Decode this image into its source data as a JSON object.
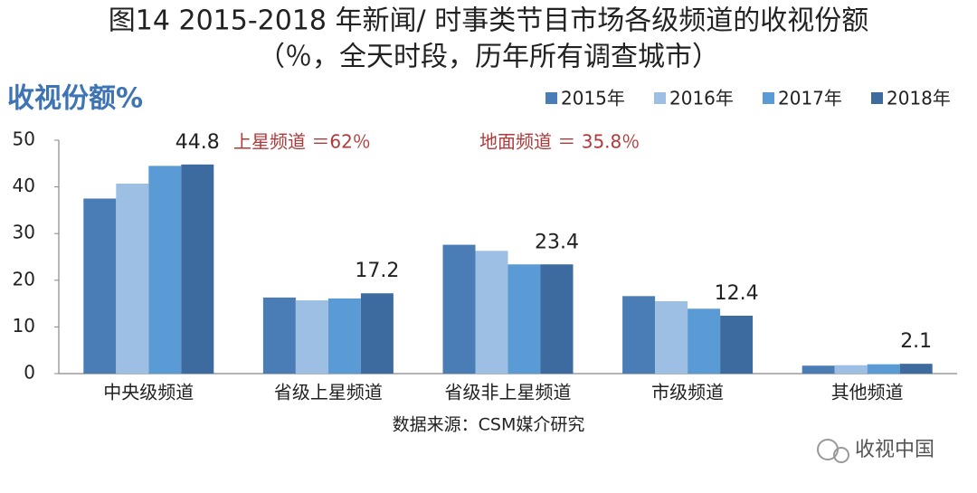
{
  "chart_data": {
    "type": "bar",
    "title": "图14 2015-2018 年新闻/ 时事类节目市场各级频道的收视份额",
    "subtitle": "（％，全天时段，历年所有调查城市）",
    "ylabel": "收视份额%",
    "annotations": [
      "上星频道 ＝62％",
      "地面频道 ＝ 35.8％"
    ],
    "source": "数据来源：CSM媒介研究",
    "watermark": "收视中国",
    "categories": [
      "中央级频道",
      "省级上星频道",
      "省级非上星频道",
      "市级频道",
      "其他频道"
    ],
    "series": [
      {
        "name": "2015年",
        "color": "#4a7db5",
        "values": [
          37.5,
          16.3,
          27.6,
          16.6,
          1.7
        ]
      },
      {
        "name": "2016年",
        "color": "#9dbfe3",
        "values": [
          40.7,
          15.7,
          26.3,
          15.5,
          1.8
        ]
      },
      {
        "name": "2017年",
        "color": "#5b9bd5",
        "values": [
          44.5,
          16.1,
          23.4,
          13.9,
          2.0
        ]
      },
      {
        "name": "2018年",
        "color": "#3e6b9f",
        "values": [
          44.8,
          17.2,
          23.4,
          12.4,
          2.1
        ],
        "show_values": true
      }
    ],
    "ylim": [
      0,
      50
    ],
    "yticks": [
      0,
      10,
      20,
      30,
      40,
      50
    ],
    "grid": false,
    "legend": "top-right"
  }
}
